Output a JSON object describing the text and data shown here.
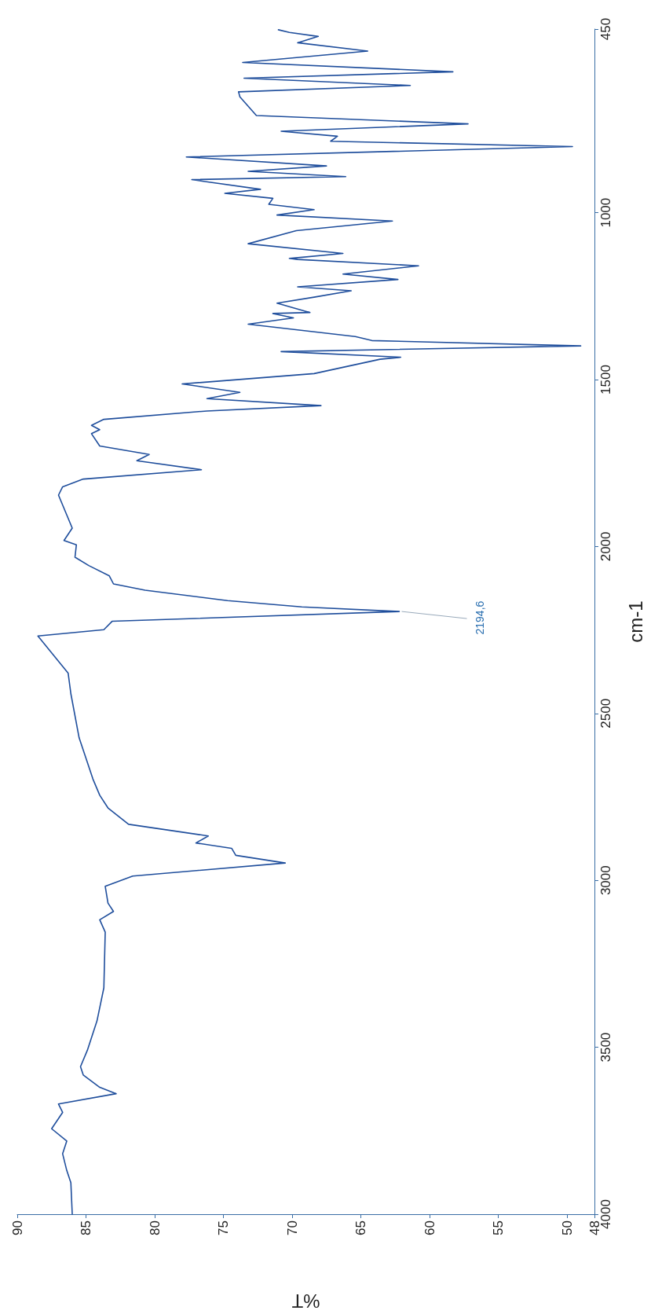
{
  "chart_data": {
    "type": "line",
    "xlabel": "%T",
    "ylabel": "cm-1",
    "xlim": [
      90,
      48
    ],
    "xticks": [
      90,
      85,
      80,
      75,
      70,
      65,
      60,
      55,
      50,
      48
    ],
    "ylim": [
      4000,
      450
    ],
    "yticks": [
      4000,
      3500,
      3000,
      2500,
      2000,
      1500,
      1000,
      450
    ],
    "grid": false,
    "marker": "none",
    "line_style": "solid",
    "annotations": [
      {
        "text": "2194,6",
        "x": 62.2,
        "y": 2194.6
      }
    ],
    "series": [
      {
        "color": "#1f4e9c",
        "x": [
          86.0,
          86.1,
          86.4,
          86.7,
          86.4,
          87.5,
          86.7,
          87.0,
          82.8,
          84.0,
          85.2,
          85.4,
          84.9,
          84.2,
          83.7,
          83.6,
          84.0,
          83.0,
          83.4,
          83.6,
          81.6,
          70.5,
          74.1,
          74.4,
          77.0,
          76.1,
          81.9,
          83.4,
          84.0,
          84.5,
          85.5,
          86.1,
          86.3,
          88.5,
          83.7,
          83.1,
          62.2,
          69.3,
          74.7,
          80.7,
          83.0,
          83.3,
          84.8,
          85.8,
          85.7,
          86.6,
          86.0,
          87.0,
          86.7,
          85.2,
          76.6,
          81.3,
          80.4,
          84.0,
          84.6,
          84.0,
          84.6,
          83.7,
          76.2,
          67.9,
          76.2,
          73.8,
          78.0,
          68.4,
          63.6,
          62.1,
          70.8,
          49.0,
          64.2,
          65.4,
          73.2,
          69.9,
          71.4,
          68.7,
          71.1,
          68.4,
          65.7,
          69.6,
          62.3,
          66.3,
          60.8,
          69.6,
          70.2,
          66.3,
          73.2,
          69.7,
          62.7,
          71.1,
          68.4,
          71.7,
          71.4,
          74.9,
          72.3,
          77.3,
          66.1,
          73.2,
          67.5,
          77.7,
          49.6,
          67.2,
          66.7,
          70.8,
          57.2,
          72.6,
          73.8,
          73.9,
          61.4,
          73.5,
          58.3,
          73.6,
          64.5,
          69.6,
          68.1,
          70.2,
          71.0
        ],
        "values": [
          4000,
          3906,
          3869,
          3819,
          3781,
          3744,
          3695,
          3670,
          3639,
          3620,
          3583,
          3558,
          3509,
          3421,
          3322,
          3155,
          3118,
          3093,
          3068,
          3018,
          2987,
          2948,
          2925,
          2904,
          2888,
          2867,
          2832,
          2783,
          2745,
          2696,
          2573,
          2441,
          2379,
          2268,
          2249,
          2224,
          2194.6,
          2181,
          2162,
          2131,
          2112,
          2088,
          2057,
          2032,
          1995,
          1982,
          1945,
          1846,
          1821,
          1798,
          1770,
          1743,
          1724,
          1699,
          1662,
          1650,
          1637,
          1619,
          1594,
          1578,
          1557,
          1538,
          1513,
          1482,
          1439,
          1433,
          1416,
          1399,
          1383,
          1371,
          1334,
          1315,
          1302,
          1299,
          1271,
          1253,
          1234,
          1222,
          1200,
          1184,
          1159,
          1140,
          1137,
          1122,
          1093,
          1054,
          1025,
          1007,
          991,
          975,
          957,
          942,
          930,
          901,
          892,
          876,
          860,
          833,
          802,
          786,
          771,
          756,
          734,
          709,
          653,
          638,
          619,
          597,
          578,
          550,
          516,
          491,
          472,
          460,
          452
        ]
      }
    ]
  }
}
